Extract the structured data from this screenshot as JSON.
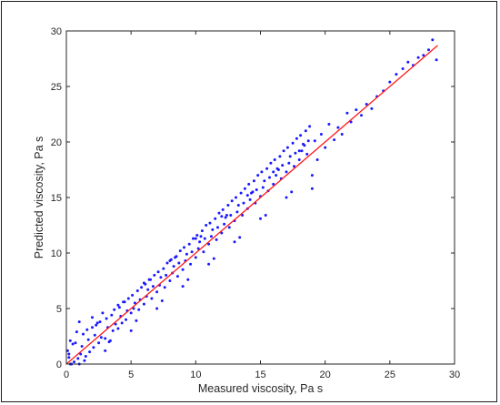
{
  "chart_data": {
    "type": "scatter",
    "title": "",
    "xlabel": "Measured viscosity, Pa s",
    "ylabel": "Predicted viscosity, Pa s",
    "xlim": [
      0,
      30
    ],
    "ylim": [
      0,
      30
    ],
    "x_ticks": [
      0,
      5,
      10,
      15,
      20,
      25,
      30
    ],
    "y_ticks": [
      0,
      5,
      10,
      15,
      20,
      25,
      30
    ],
    "x_tick_labels": [
      "0",
      "5",
      "10",
      "15",
      "20",
      "25",
      "30"
    ],
    "y_tick_labels": [
      "0",
      "5",
      "10",
      "15",
      "20",
      "25",
      "30"
    ],
    "grid": false,
    "box": true,
    "legend": "none",
    "colors": {
      "points": "#1a1aff",
      "fit_line": "#ff1a1a",
      "axes": "#262626"
    },
    "series": [
      {
        "kind": "scatter",
        "marker": "dot",
        "x": [
          0.1,
          0.2,
          0.3,
          0.4,
          0.5,
          0.6,
          0.8,
          0.9,
          1.0,
          1.1,
          1.2,
          1.3,
          1.5,
          1.6,
          1.7,
          1.8,
          2.0,
          2.1,
          2.2,
          2.3,
          2.5,
          2.6,
          2.7,
          2.8,
          3.0,
          3.1,
          3.2,
          3.3,
          3.5,
          3.6,
          3.7,
          3.8,
          4.0,
          4.1,
          4.2,
          4.3,
          4.5,
          4.6,
          4.7,
          4.8,
          5.0,
          5.1,
          5.2,
          5.3,
          5.5,
          5.6,
          5.7,
          5.8,
          6.0,
          6.1,
          6.2,
          6.3,
          6.5,
          6.6,
          6.7,
          6.8,
          7.0,
          7.1,
          7.2,
          7.3,
          7.5,
          7.6,
          7.7,
          7.8,
          8.0,
          8.1,
          8.2,
          8.3,
          8.5,
          8.6,
          8.7,
          8.8,
          9.0,
          9.1,
          9.2,
          9.3,
          9.5,
          9.6,
          9.7,
          9.8,
          10.0,
          10.1,
          10.2,
          10.3,
          10.5,
          10.6,
          10.7,
          10.8,
          11.0,
          11.1,
          11.2,
          11.3,
          11.5,
          11.6,
          11.7,
          11.8,
          12.0,
          12.1,
          12.2,
          12.3,
          12.5,
          12.6,
          12.7,
          12.8,
          13.0,
          13.1,
          13.2,
          13.3,
          13.5,
          13.6,
          13.7,
          13.8,
          14.0,
          14.1,
          14.2,
          14.3,
          14.5,
          14.6,
          14.7,
          14.8,
          15.0,
          15.1,
          15.2,
          15.3,
          15.5,
          15.6,
          15.7,
          15.8,
          16.0,
          16.1,
          16.2,
          16.3,
          16.5,
          16.6,
          16.7,
          16.8,
          17.0,
          17.1,
          17.2,
          17.3,
          17.5,
          17.6,
          17.7,
          17.8,
          18.0,
          18.1,
          18.2,
          18.3,
          18.5,
          18.6,
          18.7,
          18.8,
          19.0,
          19.2,
          19.4,
          19.7,
          20.0,
          20.3,
          20.7,
          21.0,
          21.3,
          21.7,
          22.0,
          22.4,
          22.8,
          23.2,
          23.6,
          24.0,
          24.5,
          25.0,
          25.5,
          26.0,
          26.4,
          26.8,
          27.2,
          27.6,
          28.0,
          28.3,
          28.6,
          0.3,
          0.7,
          1.4,
          2.4,
          3.4,
          4.4,
          5.4,
          6.4,
          7.4,
          8.4,
          9.4,
          10.4,
          11.4,
          12.4,
          13.4,
          14.4,
          15.4,
          16.4,
          17.4,
          18.4,
          0.2,
          1.0,
          2.0,
          3.0,
          4.0,
          5.0,
          6.0,
          7.0,
          8.0,
          9.0,
          10.0,
          11.0,
          12.0,
          13.0,
          14.0,
          15.0,
          16.0,
          17.0,
          18.0,
          19.0
        ],
        "y": [
          1.2,
          0.6,
          2.1,
          -0.3,
          1.8,
          0.2,
          2.9,
          0.5,
          3.8,
          0.9,
          1.6,
          2.7,
          0.7,
          3.1,
          2.2,
          1.1,
          4.2,
          1.5,
          2.6,
          3.5,
          1.9,
          3.8,
          2.4,
          4.6,
          2.3,
          4.1,
          3.3,
          2.0,
          4.4,
          3.0,
          4.9,
          3.6,
          3.2,
          5.1,
          4.3,
          3.7,
          5.6,
          4.0,
          4.8,
          5.9,
          4.6,
          6.2,
          5.0,
          5.5,
          6.6,
          4.9,
          5.8,
          6.9,
          5.4,
          7.2,
          6.1,
          6.7,
          7.6,
          5.9,
          7.0,
          8.0,
          6.5,
          8.3,
          7.1,
          7.8,
          8.6,
          6.9,
          8.0,
          9.1,
          7.5,
          9.4,
          8.2,
          8.8,
          9.7,
          7.9,
          9.1,
          10.2,
          8.5,
          10.5,
          9.3,
          9.9,
          10.8,
          9.0,
          10.1,
          11.3,
          9.6,
          11.6,
          10.4,
          11.0,
          12.0,
          10.1,
          11.3,
          12.5,
          10.8,
          12.7,
          11.5,
          12.1,
          13.1,
          11.2,
          12.3,
          13.6,
          11.8,
          13.9,
          12.6,
          13.2,
          14.3,
          12.3,
          13.4,
          14.7,
          12.9,
          15.0,
          13.7,
          14.3,
          15.4,
          13.4,
          14.5,
          15.8,
          14.0,
          16.2,
          14.8,
          15.4,
          16.5,
          14.5,
          15.7,
          17.0,
          15.1,
          17.3,
          15.9,
          16.5,
          17.6,
          15.6,
          16.8,
          18.1,
          16.2,
          18.4,
          17.0,
          17.6,
          18.7,
          16.7,
          17.9,
          19.2,
          17.3,
          19.5,
          18.1,
          18.7,
          19.9,
          17.8,
          19.0,
          20.3,
          18.4,
          20.6,
          19.2,
          19.8,
          21.0,
          18.9,
          20.1,
          21.4,
          15.8,
          20.1,
          18.4,
          20.7,
          19.5,
          21.6,
          20.2,
          21.3,
          20.7,
          22.6,
          21.8,
          22.9,
          22.4,
          23.4,
          23.0,
          24.1,
          24.6,
          25.4,
          26.1,
          26.6,
          27.2,
          26.9,
          27.6,
          27.8,
          28.3,
          29.2,
          27.4,
          -0.1,
          1.9,
          0.3,
          3.7,
          2.1,
          5.6,
          3.9,
          7.6,
          5.7,
          9.6,
          7.6,
          11.5,
          9.5,
          13.4,
          11.4,
          15.5,
          13.4,
          17.5,
          15.5,
          19.7,
          0.9,
          -0.2,
          3.3,
          1.2,
          5.3,
          3.0,
          7.3,
          5.0,
          9.3,
          7.0,
          11.3,
          9.0,
          13.3,
          11.0,
          15.2,
          13.1,
          17.3,
          15.0,
          19.2,
          17.0
        ]
      },
      {
        "kind": "line",
        "x": [
          0,
          28.7
        ],
        "y": [
          0,
          28.7
        ]
      }
    ]
  }
}
